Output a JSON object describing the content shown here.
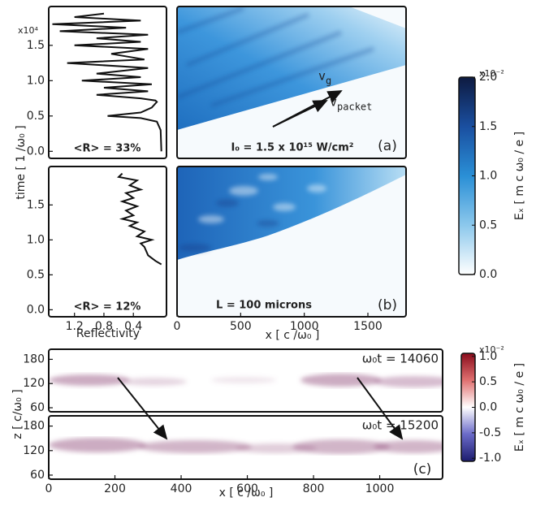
{
  "chart_data": [
    {
      "type": "line",
      "xlim": [
        1.55,
        -0.05
      ],
      "ylim": [
        -0.1,
        2.05
      ],
      "yticks": [
        {
          "value": 0,
          "label": "0.0"
        },
        {
          "value": 0.5,
          "label": "0.5"
        },
        {
          "value": 1,
          "label": "1.0"
        },
        {
          "value": 1.5,
          "label": "1.5"
        }
      ],
      "y_multiplier": "x10⁴",
      "ylabel": "time [ 1 /ω₀ ]",
      "annotation": "<R> = 33%",
      "x": [
        0.02,
        0.03,
        0.08,
        0.3,
        0.75,
        0.3,
        0.15,
        0.08,
        0.1,
        0.3,
        0.9,
        0.2,
        0.8,
        0.15,
        1.1,
        0.3,
        0.9,
        0.2,
        1.3,
        0.25,
        0.7,
        0.2,
        1.2,
        0.3,
        0.9,
        0.2,
        1.4,
        0.5,
        1.5,
        0.3,
        1.2,
        0.8
      ],
      "series": [
        {
          "color": "#111111",
          "values": [
            0.0,
            0.3,
            0.42,
            0.47,
            0.5,
            0.55,
            0.62,
            0.7,
            0.72,
            0.75,
            0.8,
            0.85,
            0.9,
            0.95,
            1.0,
            1.05,
            1.1,
            1.18,
            1.25,
            1.3,
            1.38,
            1.45,
            1.5,
            1.55,
            1.6,
            1.65,
            1.7,
            1.75,
            1.8,
            1.85,
            1.9,
            1.95
          ]
        }
      ]
    },
    {
      "type": "line",
      "xlim": [
        1.55,
        -0.05
      ],
      "xticks": [
        1.2,
        0.8,
        0.4
      ],
      "ylim": [
        -0.1,
        2.05
      ],
      "yticks": [
        {
          "value": 0,
          "label": "0.0"
        },
        {
          "value": 0.5,
          "label": "0.5"
        },
        {
          "value": 1,
          "label": "1.0"
        },
        {
          "value": 1.5,
          "label": "1.5"
        }
      ],
      "xlabel": "Reflectivity",
      "annotation": "<R> = 12%",
      "x": [
        0.02,
        0.1,
        0.2,
        0.25,
        0.3,
        0.15,
        0.35,
        0.25,
        0.45,
        0.35,
        0.55,
        0.4,
        0.5,
        0.35,
        0.55,
        0.4,
        0.5,
        0.3,
        0.45,
        0.35,
        0.6,
        0.55
      ],
      "series": [
        {
          "color": "#111111",
          "values": [
            0.65,
            0.7,
            0.78,
            0.9,
            0.95,
            1.0,
            1.05,
            1.12,
            1.2,
            1.25,
            1.3,
            1.35,
            1.42,
            1.48,
            1.55,
            1.6,
            1.67,
            1.72,
            1.78,
            1.85,
            1.9,
            1.95
          ]
        }
      ]
    },
    {
      "type": "heatmap",
      "xlim": [
        0,
        1800
      ],
      "panel": "(a)",
      "annotations": [
        {
          "text": "v",
          "sub": "g"
        },
        {
          "text": "v",
          "sub": "packet"
        },
        {
          "text": "I₀ = 1.5 x 10¹⁵ W/cm²"
        }
      ],
      "colorbar": {
        "lim": [
          0,
          2
        ],
        "ticks": [
          {
            "value": 0,
            "label": "0.0"
          },
          0.5,
          {
            "value": 1,
            "label": "1.0"
          },
          1.5,
          {
            "value": 2,
            "label": "2.0"
          }
        ],
        "multiplier": "x10⁻²",
        "label": "Eₓ [ m c ω₀ / e ]",
        "colors": [
          "#ffffff",
          "#8cc8ec",
          "#2a8fd6",
          "#1a4fa0",
          "#0e1a40"
        ]
      }
    },
    {
      "type": "heatmap",
      "xlim": [
        0,
        1800
      ],
      "xticks": [
        0,
        500,
        1000,
        1500
      ],
      "xlabel": "x [ c /ω₀ ]",
      "panel": "(b)",
      "annotations": [
        {
          "text": "L = 100 microns"
        }
      ]
    },
    {
      "type": "heatmap",
      "xlim": [
        0,
        1190
      ],
      "ylim": [
        50,
        205
      ],
      "yticks": [
        60,
        120,
        180
      ],
      "ylabel": "z [ c/ω₀ ]",
      "annotations": [
        {
          "text": "ω₀t = 14060"
        }
      ]
    },
    {
      "type": "heatmap",
      "xlim": [
        0,
        1190
      ],
      "ylim": [
        50,
        205
      ],
      "yticks": [
        60,
        120,
        180
      ],
      "xticks": [
        0,
        200,
        400,
        600,
        800,
        1000
      ],
      "xlabel": "x [ c /ω₀ ]",
      "panel": "(c)",
      "annotations": [
        {
          "text": "ω₀t = 15200"
        }
      ],
      "colorbar": {
        "lim": [
          -1.06,
          1.06
        ],
        "ticks": [
          {
            "value": -1,
            "label": "-1.0"
          },
          -0.5,
          {
            "value": 0,
            "label": "0.0"
          },
          0.5,
          {
            "value": 1,
            "label": "1.0"
          }
        ],
        "multiplier": "x10⁻²",
        "label": "Eₓ [ m c ω₀ / e ]",
        "colors": [
          "#1c1c6e",
          "#6a6ac8",
          "#ffffff",
          "#e07070",
          "#8a0c1c"
        ]
      }
    }
  ]
}
